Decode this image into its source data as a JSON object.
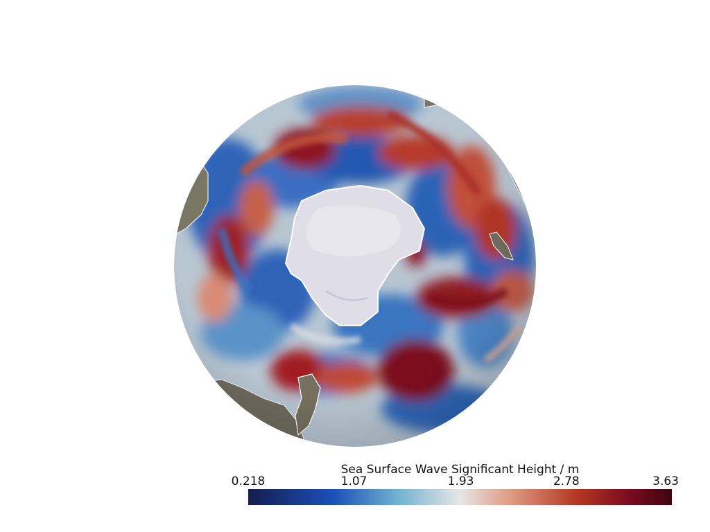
{
  "colorbar": {
    "title": "Sea Surface Wave Significant Height / m",
    "min": 0.218,
    "max": 3.63,
    "ticks": [
      "0.218",
      "1.07",
      "1.93",
      "2.78",
      "3.63"
    ],
    "tick_values": [
      0.218,
      1.07,
      1.93,
      2.78,
      3.63
    ],
    "stops": [
      "#151d4e",
      "#1b4fb8",
      "#6fb1cf",
      "#e6e6e6",
      "#df9a82",
      "#b33420",
      "#7a0b1f",
      "#3d0410"
    ]
  },
  "map": {
    "projection": "orthographic",
    "view": "south-polar",
    "land_color": "#7a7468",
    "ice_color": "#dcdce8",
    "background": "#ffffff"
  }
}
